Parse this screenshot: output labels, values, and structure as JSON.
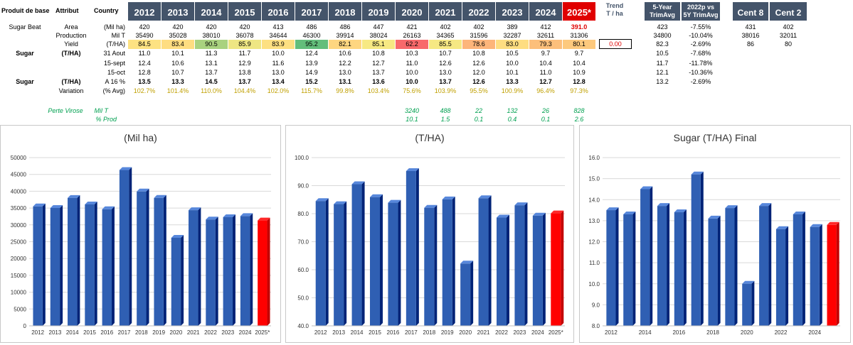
{
  "table": {
    "header": {
      "col1": "Produit de base",
      "col2": "Attribut",
      "col3": "Country",
      "years": [
        "2012",
        "2013",
        "2014",
        "2015",
        "2016",
        "2017",
        "2018",
        "2019",
        "2020",
        "2021",
        "2022",
        "2023",
        "2024",
        "2025*"
      ],
      "trend_line1": "Trend",
      "trend_line2": "T / ha",
      "fiveyear_line1": "5-Year",
      "fiveyear_line2": "TrimAvg",
      "vs_line1": "2022p vs",
      "vs_line2": "5Y TrimAvg",
      "cent8": "Cent 8",
      "cent2": "Cent 2"
    },
    "rows": [
      {
        "product": "Sugar Beat",
        "attr": "Area",
        "unit": "(Mil ha)",
        "values": [
          "420",
          "420",
          "420",
          "420",
          "413",
          "486",
          "486",
          "447",
          "421",
          "402",
          "402",
          "389",
          "412",
          "391.0"
        ],
        "fiveyear": "423",
        "vs": "-7.55%",
        "cent8": "431",
        "cent2": "402"
      },
      {
        "product": "",
        "attr": "Production",
        "unit": "Mil T",
        "values": [
          "35490",
          "35028",
          "38010",
          "36078",
          "34644",
          "46300",
          "39914",
          "38024",
          "26163",
          "34365",
          "31596",
          "32287",
          "32611",
          "31306"
        ],
        "fiveyear": "34800",
        "vs": "-10.04%",
        "cent8": "38016",
        "cent2": "32011"
      },
      {
        "product": "",
        "attr": "Yield",
        "unit": "(T/HA)",
        "values": [
          "84.5",
          "83.4",
          "90.5",
          "85.9",
          "83.9",
          "95.2",
          "82.1",
          "85.1",
          "62.2",
          "85.5",
          "78.6",
          "83.0",
          "79.3",
          "80.1"
        ],
        "trend": "0.00",
        "fiveyear": "82.3",
        "vs": "-2.69%",
        "cent8": "86",
        "cent2": "80"
      },
      {
        "product": "Sugar",
        "attr": "(T/HA)",
        "unit": "31 Aout",
        "values": [
          "11.0",
          "10.1",
          "11.3",
          "11.7",
          "10.0",
          "12.4",
          "10.6",
          "10.8",
          "10.3",
          "10.7",
          "10.8",
          "10.5",
          "9.7",
          "9.7"
        ],
        "fiveyear": "10.5",
        "vs": "-7.68%"
      },
      {
        "product": "",
        "attr": "",
        "unit": "15-sept",
        "values": [
          "12.4",
          "10.6",
          "13.1",
          "12.9",
          "11.6",
          "13.9",
          "12.2",
          "12.7",
          "11.0",
          "12.6",
          "12.6",
          "10.0",
          "10.4",
          "10.4"
        ],
        "fiveyear": "11.7",
        "vs": "-11.78%"
      },
      {
        "product": "",
        "attr": "",
        "unit": "15-oct",
        "values": [
          "12.8",
          "10.7",
          "13.7",
          "13.8",
          "13.0",
          "14.9",
          "13.0",
          "13.7",
          "10.0",
          "13.0",
          "12.0",
          "10.1",
          "11.0",
          "10.9"
        ],
        "fiveyear": "12.1",
        "vs": "-10.36%"
      },
      {
        "product": "Sugar",
        "attr": "(T/HA)",
        "unit": "A 16 %",
        "values": [
          "13.5",
          "13.3",
          "14.5",
          "13.7",
          "13.4",
          "15.2",
          "13.1",
          "13.6",
          "10.0",
          "13.7",
          "12.6",
          "13.3",
          "12.7",
          "12.8"
        ],
        "fiveyear": "13.2",
        "vs": "-2.69%"
      },
      {
        "product": "",
        "attr": "Variation",
        "unit": "(% Avg)",
        "values": [
          "102.7%",
          "101.4%",
          "110.0%",
          "104.4%",
          "102.0%",
          "115.7%",
          "99.8%",
          "103.4%",
          "75.6%",
          "103.9%",
          "95.5%",
          "100.9%",
          "96.4%",
          "97.3%"
        ]
      }
    ],
    "perte": {
      "label": "Perte Virose",
      "unit1": "Mil T",
      "unit2": "% Prod",
      "row1": {
        "2020": "3240",
        "2021": "488",
        "2022": "22",
        "2023": "132",
        "2024": "26",
        "2025*": "828"
      },
      "row2": {
        "2020": "10.1",
        "2021": "1.5",
        "2022": "0.1",
        "2023": "0.4",
        "2024": "0.1",
        "2025*": "2.6"
      }
    },
    "yield_colors": [
      "#fde282",
      "#fedd81",
      "#a9d27f",
      "#eee683",
      "#fde082",
      "#63be7b",
      "#fed680",
      "#f7e983",
      "#f8696b",
      "#f6e883",
      "#fdb57a",
      "#fedd81",
      "#fcbf7b",
      "#fdc97d"
    ]
  },
  "chart_data": [
    {
      "type": "bar",
      "title": "(Mil ha)",
      "categories": [
        "2012",
        "2013",
        "2014",
        "2015",
        "2016",
        "2017",
        "2018",
        "2019",
        "2020",
        "2021",
        "2022",
        "2023",
        "2024",
        "2025*"
      ],
      "values": [
        35490,
        35028,
        38010,
        36078,
        34644,
        46300,
        39914,
        38024,
        26163,
        34365,
        31596,
        32287,
        32611,
        31306
      ],
      "ylim": [
        0,
        50000
      ],
      "yticks": [
        "0",
        "5000",
        "10000",
        "15000",
        "20000",
        "25000",
        "30000",
        "35000",
        "40000",
        "45000",
        "50000"
      ],
      "bar_color": "#2f5fb3",
      "highlight_color": "#ff0000",
      "grid": true
    },
    {
      "type": "bar",
      "title": "(T/HA)",
      "categories": [
        "2012",
        "2013",
        "2014",
        "2015",
        "2016",
        "2017",
        "2018",
        "2019",
        "2020",
        "2021",
        "2022",
        "2023",
        "2024",
        "2025*"
      ],
      "values": [
        84.5,
        83.4,
        90.5,
        85.9,
        83.9,
        95.2,
        82.1,
        85.1,
        62.2,
        85.5,
        78.6,
        83.0,
        79.3,
        80.1
      ],
      "ylim": [
        40,
        100
      ],
      "yticks": [
        "40.0",
        "50.0",
        "60.0",
        "70.0",
        "80.0",
        "90.0",
        "100.0"
      ],
      "bar_color": "#2f5fb3",
      "highlight_color": "#ff0000",
      "grid": true
    },
    {
      "type": "bar",
      "title": "Sugar (T/HA)  Final",
      "categories": [
        "2012",
        "2013",
        "2014",
        "2015",
        "2016",
        "2017",
        "2018",
        "2019",
        "2020",
        "2021",
        "2022",
        "2023",
        "2024",
        "2025*"
      ],
      "xtick_labels": [
        "2012",
        "",
        "2014",
        "",
        "2016",
        "",
        "2018",
        "",
        "2020",
        "",
        "2022",
        "",
        "2024",
        ""
      ],
      "values": [
        13.5,
        13.3,
        14.5,
        13.7,
        13.4,
        15.2,
        13.1,
        13.6,
        10.0,
        13.7,
        12.6,
        13.3,
        12.7,
        12.8
      ],
      "ylim": [
        8,
        16
      ],
      "yticks": [
        "8.0",
        "9.0",
        "10.0",
        "11.0",
        "12.0",
        "13.0",
        "14.0",
        "15.0",
        "16.0"
      ],
      "bar_color": "#2f5fb3",
      "highlight_color": "#ff0000",
      "grid": true
    }
  ]
}
